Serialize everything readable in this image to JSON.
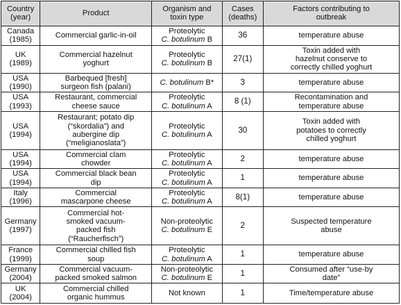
{
  "table": {
    "headers": {
      "country_line1": "Country",
      "country_line2": "(year)",
      "product": "Product",
      "organism_line1": "Organism and",
      "organism_line2": "toxin type",
      "cases_line1": "Cases",
      "cases_line2": "(deaths)",
      "factors_line1": "Factors contributing to",
      "factors_line2": "outbreak"
    },
    "rows": [
      {
        "country": "Canada",
        "year": "(1985)",
        "product_lines": [
          "Commercial garlic-in-oil"
        ],
        "organism_prefix": "Proteolytic",
        "organism_species": "C. botulinum",
        "organism_type": " B",
        "cases": "36",
        "factors_lines": [
          "temperature abuse"
        ]
      },
      {
        "country": "UK",
        "year": "(1989)",
        "product_lines": [
          "Commercial hazelnut",
          "yoghurt"
        ],
        "organism_prefix": "Proteolytic",
        "organism_species": "C. botulinum",
        "organism_type": " B",
        "cases": "27(1)",
        "factors_lines": [
          "Toxin added with",
          "hazelnut conserve to",
          "correctly chilled yoghurt"
        ]
      },
      {
        "country": "USA",
        "year": "(1990)",
        "product_lines": [
          "Barbequed [fresh]",
          "surgeon fish (palani)"
        ],
        "organism_prefix": "",
        "organism_species": "C. botulinum",
        "organism_type": " B*",
        "cases": "3",
        "factors_lines": [
          "temperature abuse"
        ]
      },
      {
        "country": "USA",
        "year": "(1993)",
        "product_lines": [
          "Restaurant, commercial",
          "cheese sauce"
        ],
        "organism_prefix": "Proteolytic",
        "organism_species": "C. botulinum",
        "organism_type": " A",
        "cases": "8 (1)",
        "factors_lines": [
          "Recontamination and",
          "temperature abuse"
        ]
      },
      {
        "country": "USA",
        "year": "(1994)",
        "product_lines": [
          "Restaurant; potato dip",
          "(“skordalia”) and",
          "aubergine dip",
          "(“meligianoslata”)"
        ],
        "organism_prefix": "Proteolytic",
        "organism_species": "C. botulinum",
        "organism_type": " A",
        "cases": "30",
        "factors_lines": [
          "Toxin added with",
          "potatoes to correctly",
          "chilled yoghurt"
        ]
      },
      {
        "country": "USA",
        "year": "(1994)",
        "product_lines": [
          "Commercial clam",
          "chowder"
        ],
        "organism_prefix": "Proteolytic",
        "organism_species": "C. botulinum",
        "organism_type": " A",
        "cases": "2",
        "factors_lines": [
          "temperature abuse"
        ]
      },
      {
        "country": "USA",
        "year": "(1994)",
        "product_lines": [
          "Commercial black bean",
          "dip"
        ],
        "organism_prefix": "Proteolytic",
        "organism_species": "C. botulinum",
        "organism_type": " A",
        "cases": "1",
        "factors_lines": [
          "temperature abuse"
        ]
      },
      {
        "country": "Italy",
        "year": "(1996)",
        "product_lines": [
          "Commercial",
          "mascarpone cheese"
        ],
        "organism_prefix": "Proteolytic",
        "organism_species": "C. botulinum",
        "organism_type": " A",
        "cases": "8(1)",
        "factors_lines": [
          "temperature abuse"
        ]
      },
      {
        "country": "Germany",
        "year": "(1997)",
        "product_lines": [
          "Commercial hot-",
          "smoked vacuum-",
          "packed fish",
          "(“Raucherfisch”)"
        ],
        "organism_prefix": "Non-proteolytic",
        "organism_species": "C. botulinum",
        "organism_type": " E",
        "cases": "2",
        "factors_lines": [
          "Suspected temperature",
          "abuse"
        ]
      },
      {
        "country": "France",
        "year": "(1999)",
        "product_lines": [
          "Commercial chilled fish",
          "soup"
        ],
        "organism_prefix": "Proteolytic",
        "organism_species": "C. botulinum",
        "organism_type": " A",
        "cases": "1",
        "factors_lines": [
          "temperature abuse"
        ]
      },
      {
        "country": "Germany",
        "year": "(2004)",
        "product_lines": [
          "Commercial vacuum-",
          "packed smoked salmon"
        ],
        "organism_prefix": "Non-proteolytic",
        "organism_species": "C. botulinum",
        "organism_type": " E",
        "cases": "1",
        "factors_lines": [
          "Consumed after “use-by",
          "date”"
        ]
      },
      {
        "country": "UK",
        "year": "(2004)",
        "product_lines": [
          "Commercial chilled",
          "organic hummus"
        ],
        "organism_prefix": "Not known",
        "organism_species": "",
        "organism_type": "",
        "cases": "1",
        "factors_lines": [
          "Time/temperature abuse"
        ]
      }
    ]
  }
}
